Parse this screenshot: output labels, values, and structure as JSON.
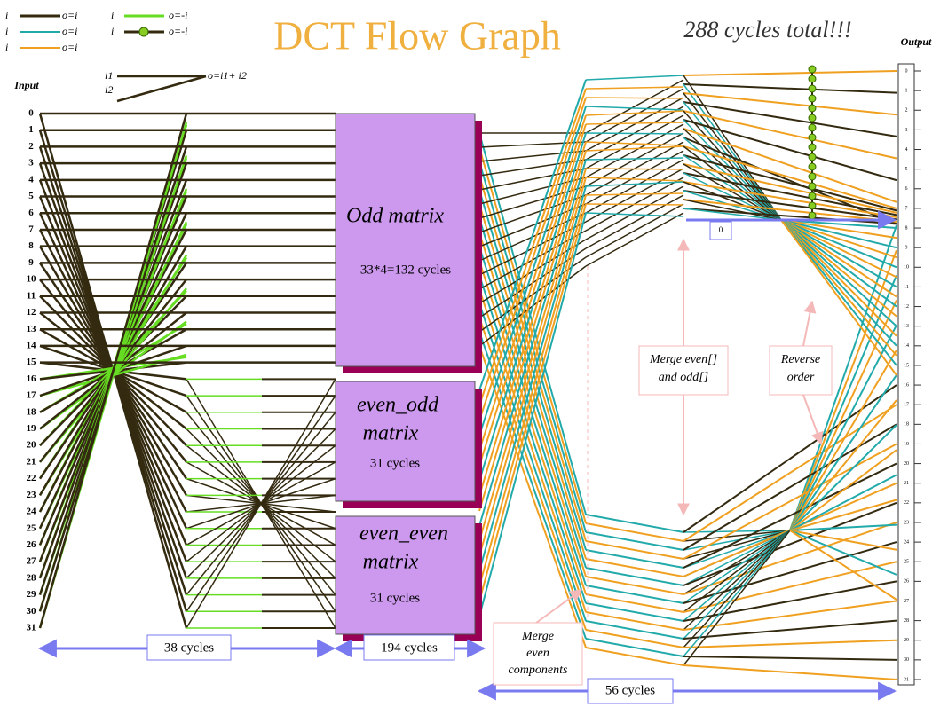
{
  "title": "DCT Flow Graph",
  "total": "288 cycles total!!!",
  "legend": [
    {
      "input": "i",
      "output": "o=i"
    },
    {
      "input": "i",
      "output": "o=-i"
    },
    {
      "input": "i",
      "output": "o=i"
    },
    {
      "input": "i",
      "output": "o=-i"
    },
    {
      "input": "i",
      "output": "o=i"
    },
    {
      "input": "i1",
      "input2": "i2",
      "output": "o=i1+ i2"
    }
  ],
  "input_heading": "Input",
  "output_heading": "Output",
  "inputs": [
    "0",
    "1",
    "2",
    "3",
    "4",
    "5",
    "6",
    "7",
    "8",
    "9",
    "10",
    "11",
    "12",
    "13",
    "14",
    "15",
    "16",
    "17",
    "18",
    "19",
    "20",
    "21",
    "22",
    "23",
    "24",
    "25",
    "26",
    "27",
    "28",
    "29",
    "30",
    "31"
  ],
  "outputs": [
    "0",
    "1",
    "2",
    "3",
    "4",
    "5",
    "6",
    "7",
    "8",
    "9",
    "10",
    "11",
    "12",
    "13",
    "14",
    "15",
    "16",
    "17",
    "18",
    "19",
    "20",
    "21",
    "22",
    "23",
    "24",
    "25",
    "26",
    "27",
    "28",
    "29",
    "30",
    "31"
  ],
  "boxes": [
    {
      "lines": [
        "Odd matrix"
      ],
      "cycles": "33*4=132 cycles"
    },
    {
      "lines": [
        "even_odd",
        "matrix"
      ],
      "cycles": "31 cycles"
    },
    {
      "lines": [
        "even_even",
        "matrix"
      ],
      "cycles": "31 cycles"
    }
  ],
  "spans": [
    "38 cycles",
    "194 cycles",
    "56 cycles"
  ],
  "notes": {
    "merge_even": [
      "Merge",
      "even",
      "components"
    ],
    "merge_odd": [
      "Merge even[]",
      "and odd[]"
    ],
    "reverse": [
      "Reverse",
      "order"
    ],
    "zero": "0"
  }
}
